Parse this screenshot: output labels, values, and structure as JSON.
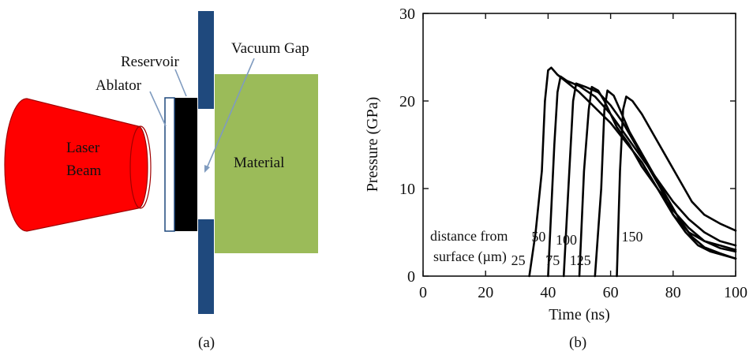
{
  "panel_a": {
    "caption": "(a)",
    "labels": {
      "reservoir": "Reservoir",
      "vacuum_gap": "Vacuum Gap",
      "ablator": "Ablator",
      "laser_line1": "Laser",
      "laser_line2": "Beam",
      "material": "Material"
    },
    "colors": {
      "laser": "#ff0000",
      "plate": "#1f497d",
      "material": "#9bbb59",
      "reservoir": "#000000",
      "arrow": "#7f9bbf"
    }
  },
  "panel_b": {
    "caption": "(b)",
    "annotation_line1": "distance from",
    "annotation_line2": "surface (µm)"
  },
  "chart_data": {
    "type": "line",
    "xlabel": "Time (ns)",
    "ylabel": "Pressure (GPa)",
    "xlim": [
      0,
      100
    ],
    "ylim": [
      0,
      30
    ],
    "xticks": [
      "0",
      "20",
      "40",
      "60",
      "80",
      "100"
    ],
    "yticks": [
      "0",
      "10",
      "20",
      "30"
    ],
    "grid": false,
    "series": [
      {
        "name": "25",
        "points": [
          [
            34,
            0
          ],
          [
            36,
            5
          ],
          [
            38,
            12
          ],
          [
            39,
            20
          ],
          [
            40,
            23.5
          ],
          [
            41,
            23.8
          ],
          [
            43,
            23
          ],
          [
            50,
            21
          ],
          [
            60,
            17.5
          ],
          [
            70,
            13
          ],
          [
            75,
            10
          ],
          [
            80,
            7.5
          ],
          [
            85,
            5.5
          ],
          [
            90,
            4
          ],
          [
            95,
            3.2
          ],
          [
            100,
            2.8
          ]
        ]
      },
      {
        "name": "50",
        "points": [
          [
            40,
            0
          ],
          [
            42,
            15
          ],
          [
            43,
            21
          ],
          [
            44,
            22.8
          ],
          [
            46,
            22.3
          ],
          [
            50,
            21.7
          ],
          [
            55,
            20.5
          ],
          [
            60,
            18.5
          ],
          [
            65,
            16
          ],
          [
            70,
            13.5
          ],
          [
            75,
            11
          ],
          [
            80,
            8.5
          ],
          [
            85,
            6.5
          ],
          [
            90,
            5
          ],
          [
            95,
            4
          ],
          [
            100,
            3.5
          ]
        ]
      },
      {
        "name": "75",
        "points": [
          [
            45,
            0
          ],
          [
            46.5,
            10
          ],
          [
            48,
            20
          ],
          [
            49,
            22
          ],
          [
            52,
            21.6
          ],
          [
            56,
            21
          ],
          [
            60,
            19.5
          ],
          [
            64,
            17.5
          ],
          [
            68,
            15
          ],
          [
            72,
            12.5
          ],
          [
            76,
            10
          ],
          [
            80,
            7
          ],
          [
            84,
            5
          ],
          [
            88,
            3.5
          ],
          [
            92,
            2.8
          ],
          [
            100,
            2
          ]
        ]
      },
      {
        "name": "100",
        "points": [
          [
            50,
            0
          ],
          [
            51.5,
            12
          ],
          [
            53,
            19
          ],
          [
            54,
            21.6
          ],
          [
            56,
            21.2
          ],
          [
            58,
            20
          ],
          [
            62,
            17
          ],
          [
            66,
            15
          ],
          [
            70,
            12.5
          ],
          [
            75,
            10
          ],
          [
            80,
            7
          ],
          [
            85,
            5
          ],
          [
            90,
            4
          ],
          [
            95,
            3.5
          ],
          [
            100,
            3
          ]
        ]
      },
      {
        "name": "125",
        "points": [
          [
            55,
            0
          ],
          [
            57,
            10
          ],
          [
            58,
            19
          ],
          [
            59,
            21.2
          ],
          [
            61,
            20.6
          ],
          [
            63,
            19
          ],
          [
            66,
            16.5
          ],
          [
            70,
            14
          ],
          [
            74,
            11.5
          ],
          [
            78,
            9
          ],
          [
            82,
            6.5
          ],
          [
            86,
            4.5
          ],
          [
            90,
            3.3
          ],
          [
            95,
            2.6
          ],
          [
            100,
            2
          ]
        ]
      },
      {
        "name": "150",
        "points": [
          [
            62,
            0
          ],
          [
            63,
            12
          ],
          [
            64,
            19
          ],
          [
            65,
            20.5
          ],
          [
            67,
            20
          ],
          [
            70,
            18.5
          ],
          [
            74,
            16
          ],
          [
            78,
            13.5
          ],
          [
            82,
            11
          ],
          [
            86,
            8.5
          ],
          [
            90,
            7
          ],
          [
            95,
            6
          ],
          [
            100,
            5.2
          ]
        ]
      }
    ]
  }
}
